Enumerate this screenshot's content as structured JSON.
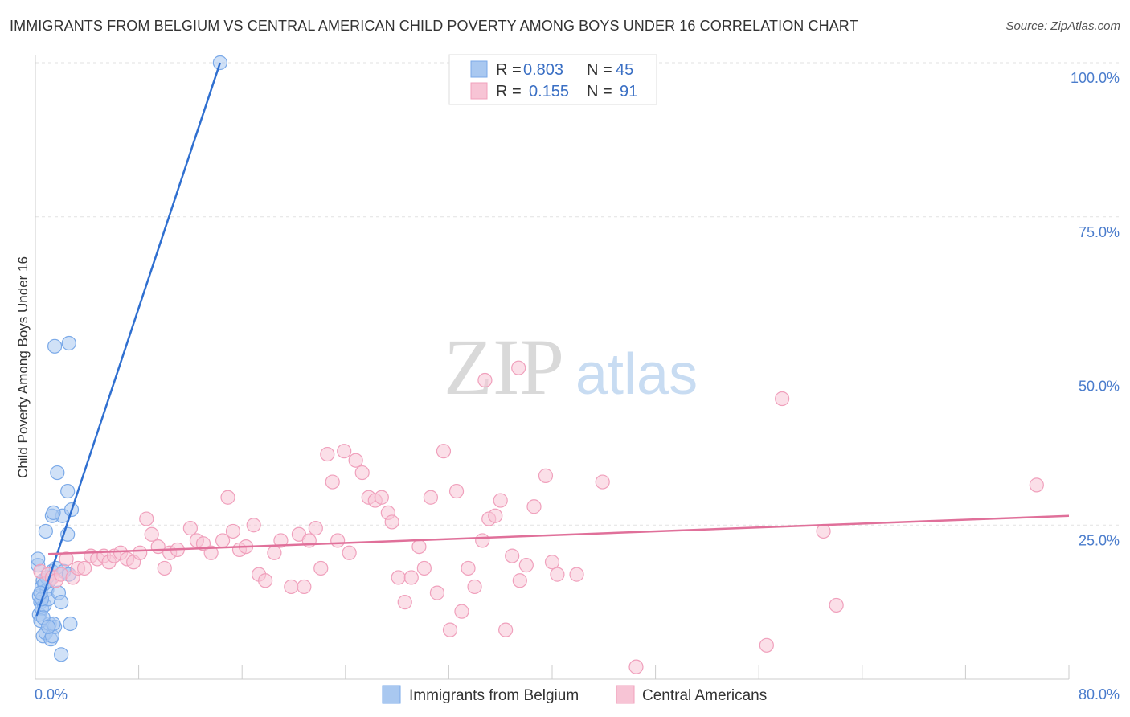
{
  "chart_data": {
    "type": "scatter",
    "title": "IMMIGRANTS FROM BELGIUM VS CENTRAL AMERICAN CHILD POVERTY AMONG BOYS UNDER 16 CORRELATION CHART",
    "source": "Source: ZipAtlas.com",
    "xlabel": "",
    "ylabel": "Child Poverty Among Boys Under 16",
    "xlim": [
      0,
      80
    ],
    "ylim": [
      0,
      100
    ],
    "x_tick_labels": [
      {
        "value": 0,
        "label": "0.0%"
      },
      {
        "value": 80,
        "label": "80.0%"
      }
    ],
    "y_tick_labels": [
      {
        "value": 25,
        "label": "25.0%"
      },
      {
        "value": 50,
        "label": "50.0%"
      },
      {
        "value": 75,
        "label": "75.0%"
      },
      {
        "value": 100,
        "label": "100.0%"
      }
    ],
    "watermark": {
      "zip": "ZIP",
      "atlas": "atlas"
    },
    "legend_stats": [
      {
        "r_label": "R =",
        "r_value": "0.803",
        "n_label": "N =",
        "n_value": "45"
      },
      {
        "r_label": "R =",
        "r_value": "0.155",
        "n_label": "N =",
        "n_value": "91"
      }
    ],
    "series": [
      {
        "name": "Immigrants from Belgium",
        "color": "#7aa9e8",
        "fill": "#a9c8f0",
        "line_color": "#2f6fd0",
        "trend": {
          "x": [
            0.1,
            14.3
          ],
          "y": [
            10.3,
            100
          ]
        },
        "points": [
          [
            0.2,
            18.5
          ],
          [
            0.3,
            13.5
          ],
          [
            0.4,
            12.5
          ],
          [
            0.5,
            15.0
          ],
          [
            0.6,
            16.0
          ],
          [
            0.3,
            10.5
          ],
          [
            0.5,
            11.5
          ],
          [
            0.7,
            12.0
          ],
          [
            0.9,
            14.5
          ],
          [
            1.0,
            13.0
          ],
          [
            0.4,
            9.5
          ],
          [
            0.6,
            7.0
          ],
          [
            0.8,
            7.5
          ],
          [
            1.1,
            9.0
          ],
          [
            1.2,
            6.5
          ],
          [
            1.3,
            7.0
          ],
          [
            1.5,
            8.5
          ],
          [
            1.4,
            9.0
          ],
          [
            1.1,
            16.0
          ],
          [
            1.3,
            17.5
          ],
          [
            1.6,
            18.0
          ],
          [
            1.8,
            14.0
          ],
          [
            2.0,
            12.5
          ],
          [
            2.1,
            26.5
          ],
          [
            2.5,
            23.5
          ],
          [
            1.3,
            26.5
          ],
          [
            1.4,
            27.0
          ],
          [
            0.8,
            24.0
          ],
          [
            2.8,
            27.5
          ],
          [
            2.5,
            30.5
          ],
          [
            1.7,
            33.5
          ],
          [
            1.5,
            54.0
          ],
          [
            2.6,
            54.5
          ],
          [
            2.7,
            9.0
          ],
          [
            2.0,
            4.0
          ],
          [
            0.9,
            16.5
          ],
          [
            0.7,
            15.5
          ],
          [
            0.2,
            19.5
          ],
          [
            2.2,
            17.5
          ],
          [
            2.6,
            17.0
          ],
          [
            0.5,
            13.0
          ],
          [
            0.4,
            14.0
          ],
          [
            0.6,
            10.0
          ],
          [
            1.0,
            8.5
          ],
          [
            14.3,
            100.0
          ]
        ]
      },
      {
        "name": "Central Americans",
        "color": "#f0a0bc",
        "fill": "#f7c4d5",
        "line_color": "#e0709a",
        "trend": {
          "x": [
            1.0,
            80.0
          ],
          "y": [
            20.3,
            26.5
          ]
        },
        "points": [
          [
            0.4,
            17.5
          ],
          [
            1.0,
            17.0
          ],
          [
            1.3,
            16.5
          ],
          [
            1.6,
            16.0
          ],
          [
            2.0,
            17.0
          ],
          [
            2.4,
            19.5
          ],
          [
            2.9,
            16.5
          ],
          [
            3.3,
            18.0
          ],
          [
            3.8,
            18.0
          ],
          [
            4.3,
            20.0
          ],
          [
            4.8,
            19.5
          ],
          [
            5.3,
            20.0
          ],
          [
            5.7,
            19.0
          ],
          [
            6.1,
            20.0
          ],
          [
            6.6,
            20.5
          ],
          [
            7.1,
            19.5
          ],
          [
            7.6,
            19.0
          ],
          [
            8.1,
            20.5
          ],
          [
            8.6,
            26.0
          ],
          [
            9.0,
            23.5
          ],
          [
            9.5,
            21.5
          ],
          [
            10.0,
            18.0
          ],
          [
            10.4,
            20.5
          ],
          [
            11.0,
            21.0
          ],
          [
            12.0,
            24.5
          ],
          [
            12.5,
            22.5
          ],
          [
            13.0,
            22.0
          ],
          [
            13.6,
            20.5
          ],
          [
            14.5,
            22.5
          ],
          [
            14.9,
            29.5
          ],
          [
            15.3,
            24.0
          ],
          [
            15.8,
            21.0
          ],
          [
            16.3,
            21.5
          ],
          [
            16.9,
            25.0
          ],
          [
            17.3,
            17.0
          ],
          [
            17.8,
            16.0
          ],
          [
            18.5,
            20.5
          ],
          [
            19.0,
            22.5
          ],
          [
            19.8,
            15.0
          ],
          [
            20.4,
            23.5
          ],
          [
            20.8,
            15.0
          ],
          [
            21.2,
            22.5
          ],
          [
            21.7,
            24.5
          ],
          [
            22.1,
            18.0
          ],
          [
            22.6,
            36.5
          ],
          [
            23.0,
            32.0
          ],
          [
            23.4,
            22.5
          ],
          [
            23.9,
            37.0
          ],
          [
            24.3,
            20.5
          ],
          [
            24.8,
            35.5
          ],
          [
            25.3,
            33.5
          ],
          [
            25.8,
            29.5
          ],
          [
            26.3,
            29.0
          ],
          [
            26.8,
            29.5
          ],
          [
            27.3,
            27.0
          ],
          [
            27.6,
            25.5
          ],
          [
            28.1,
            16.5
          ],
          [
            28.6,
            12.5
          ],
          [
            29.1,
            16.5
          ],
          [
            29.7,
            21.5
          ],
          [
            30.1,
            18.0
          ],
          [
            30.6,
            29.5
          ],
          [
            31.1,
            14.0
          ],
          [
            31.6,
            37.0
          ],
          [
            32.1,
            8.0
          ],
          [
            32.6,
            30.5
          ],
          [
            33.0,
            11.0
          ],
          [
            33.5,
            18.0
          ],
          [
            34.0,
            15.0
          ],
          [
            34.6,
            22.5
          ],
          [
            35.1,
            26.0
          ],
          [
            35.6,
            26.5
          ],
          [
            36.0,
            29.0
          ],
          [
            36.4,
            8.0
          ],
          [
            36.9,
            20.0
          ],
          [
            37.5,
            16.0
          ],
          [
            38.0,
            18.5
          ],
          [
            38.6,
            28.0
          ],
          [
            39.5,
            33.0
          ],
          [
            40.0,
            19.0
          ],
          [
            40.4,
            17.0
          ],
          [
            41.9,
            17.0
          ],
          [
            37.4,
            50.5
          ],
          [
            34.8,
            48.5
          ],
          [
            43.9,
            32.0
          ],
          [
            46.5,
            2.0
          ],
          [
            57.8,
            45.5
          ],
          [
            61.0,
            24.0
          ],
          [
            62.0,
            12.0
          ],
          [
            56.6,
            5.5
          ],
          [
            77.5,
            31.5
          ]
        ]
      }
    ]
  }
}
